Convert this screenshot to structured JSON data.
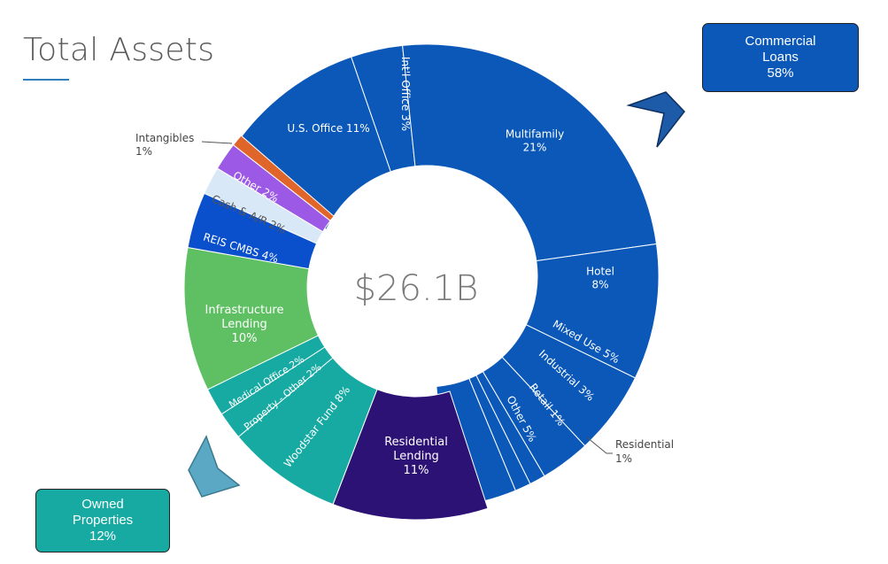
{
  "title": "Total Assets",
  "center_label": "$26.1B",
  "callouts": {
    "commercial": {
      "line1": "Commercial",
      "line2": "Loans",
      "pct": "58%"
    },
    "owned": {
      "line1": "Owned",
      "line2": "Properties",
      "pct": "12%"
    }
  },
  "colors": {
    "commercial": "#0b58b8",
    "residential_lending": "#2d1275",
    "owned": "#16aaa2",
    "infrastructure": "#5fc063",
    "reis_cmbs": "#0a4fcc",
    "cash": "#d8e8f6",
    "other_small": "#9b59e6",
    "intangibles": "#e0652a"
  },
  "chart_data": {
    "type": "pie",
    "donut": true,
    "center_label": "$26.1B",
    "slices": [
      {
        "label": "U.S. Office",
        "pct": 11,
        "text": "U.S. Office 11%",
        "group": "Commercial Loans"
      },
      {
        "label": "Int'l Office",
        "pct": 3,
        "text": "Int'l Office 3%",
        "group": "Commercial Loans"
      },
      {
        "label": "Multifamily",
        "pct": 21,
        "text": "Multifamily 21%",
        "group": "Commercial Loans"
      },
      {
        "label": "Hotel",
        "pct": 8,
        "text": "Hotel 8%",
        "group": "Commercial Loans"
      },
      {
        "label": "Mixed Use",
        "pct": 5,
        "text": "Mixed Use 5%",
        "group": "Commercial Loans"
      },
      {
        "label": "Industrial",
        "pct": 3,
        "text": "Industrial 3%",
        "group": "Commercial Loans"
      },
      {
        "label": "Retail",
        "pct": 1,
        "text": "Retail 1%",
        "group": "Commercial Loans"
      },
      {
        "label": "Residential",
        "pct": 1,
        "text": "Residential 1%",
        "group": "Commercial Loans"
      },
      {
        "label": "Other",
        "pct": 5,
        "text": "Other 5%",
        "group": "Commercial Loans"
      },
      {
        "label": "Residential Lending",
        "pct": 11,
        "text": "Residential Lending 11%"
      },
      {
        "label": "Woodstar Fund",
        "pct": 8,
        "text": "Woodstar Fund 8%",
        "group": "Owned Properties"
      },
      {
        "label": "Property - Other",
        "pct": 2,
        "text": "Property - Other 2%",
        "group": "Owned Properties"
      },
      {
        "label": "Medical Office",
        "pct": 2,
        "text": "Medical Office 2%",
        "group": "Owned Properties"
      },
      {
        "label": "Infrastructure Lending",
        "pct": 10,
        "text": "Infrastructure Lending 10%"
      },
      {
        "label": "REIS CMBS",
        "pct": 4,
        "text": "REIS CMBS 4%"
      },
      {
        "label": "Cash & A/R",
        "pct": 2,
        "text": "Cash & A/R 2%"
      },
      {
        "label": "Other",
        "pct": 2,
        "text": "Other 2%"
      },
      {
        "label": "Intangibles",
        "pct": 1,
        "text": "Intangibles 1%"
      }
    ],
    "labels": {
      "us_office": "U.S. Office 11%",
      "intl_office": "Int'l Office 3%",
      "multifamily": [
        "Multifamily",
        "21%"
      ],
      "hotel": [
        "Hotel",
        "8%"
      ],
      "mixed_use": "Mixed Use 5%",
      "industrial": "Industrial 3%",
      "retail": "Retail 1%",
      "other_commercial": "Other 5%",
      "residential": [
        "Residential",
        "1%"
      ],
      "residential_lending": [
        "Residential",
        "Lending",
        "11%"
      ],
      "woodstar": "Woodstar Fund 8%",
      "property_other": "Property - Other 2%",
      "medical_office": "Medical Office 2%",
      "infrastructure": [
        "Infrastructure",
        "Lending",
        "10%"
      ],
      "reis_cmbs": "REIS CMBS 4%",
      "cash": "Cash & A/R 2%",
      "other_small": "Other 2%",
      "intangibles": [
        "Intangibles",
        "1%"
      ]
    }
  }
}
